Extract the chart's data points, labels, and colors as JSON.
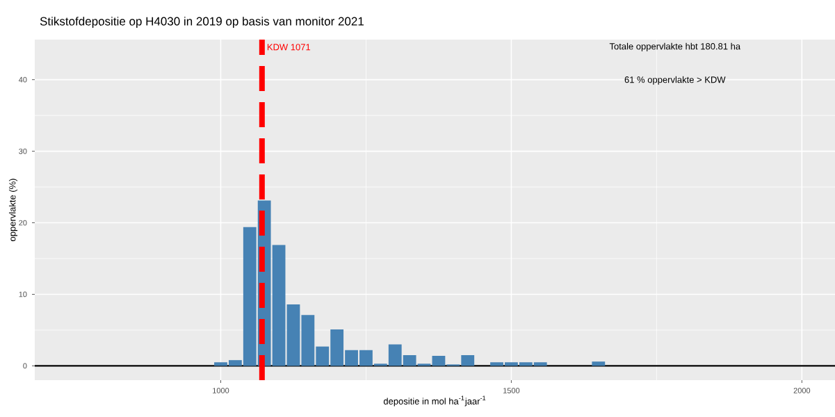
{
  "chart_data": {
    "type": "histogram",
    "title": "Stikstofdepositie op H4030 in 2019 op basis van monitor 2021",
    "xlabel": "depositie in mol ha$^{-1}$jaar$^{-1}$",
    "ylabel": "oppervlakte (%)",
    "bins": [
      987.5,
      1012.5,
      1037.5,
      1062.5,
      1087.5,
      1112.5,
      1137.5,
      1162.5,
      1187.5,
      1212.5,
      1237.5,
      1262.5,
      1287.5,
      1312.5,
      1337.5,
      1362.5,
      1387.5,
      1412.5,
      1437.5,
      1462.5,
      1487.5,
      1512.5,
      1537.5,
      1562.5,
      1587.5,
      1612.5,
      1637.5,
      1662.5
    ],
    "values": [
      0.5,
      0.8,
      19.4,
      23.1,
      16.9,
      8.6,
      7.1,
      2.7,
      5.1,
      2.2,
      2.2,
      0.3,
      3.0,
      1.5,
      0.3,
      1.4,
      0.2,
      1.5,
      0,
      0.5,
      0.5,
      0.5,
      0.5,
      0,
      0,
      0,
      0.6
    ],
    "color": "#4682b4",
    "xlim": [
      680,
      2057
    ],
    "ylim": [
      -2,
      45.6
    ],
    "xticks": [
      1000,
      1500,
      2000
    ],
    "yticks": [
      0,
      10,
      20,
      30,
      40
    ],
    "grid": true,
    "ref_lines": [
      {
        "axis": "x",
        "value": 1071,
        "label": "KDW 1071",
        "color": "#ff0000",
        "line_style": "dashed"
      },
      {
        "axis": "y",
        "value": 0,
        "label": null,
        "color": "#000000",
        "line_style": "solid"
      }
    ],
    "annotations": [
      "Totale oppervlakte hbt 180.81 ha",
      "61 % oppervlakte > KDW"
    ]
  }
}
